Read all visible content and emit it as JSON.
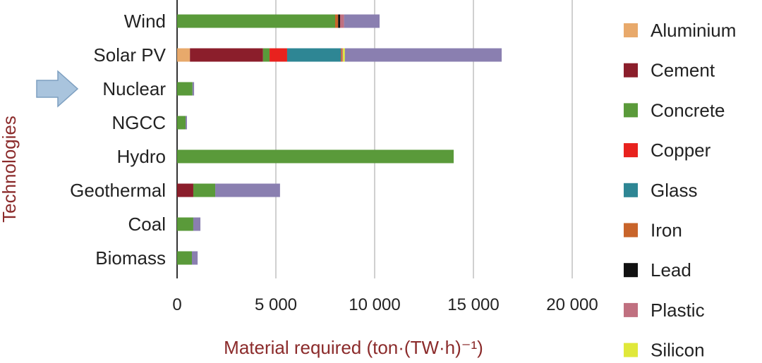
{
  "chart_data": {
    "type": "bar",
    "orientation": "horizontal",
    "stacked": true,
    "title": "",
    "xlabel": "Material required (ton·(TW·h)⁻¹)",
    "ylabel": "Technologies",
    "xlim": [
      0,
      20000
    ],
    "xticks": [
      0,
      5000,
      10000,
      15000,
      20000
    ],
    "xtick_labels": [
      "0",
      "5 000",
      "10 000",
      "15 000",
      "20 000"
    ],
    "grid": "vertical",
    "legend_position": "right",
    "highlighted_category": "Nuclear",
    "highlight_color": "#8b2b2b",
    "arrow_color": "#a9c4dd",
    "categories": [
      "Wind",
      "Solar PV",
      "Nuclear",
      "NGCC",
      "Hydro",
      "Geothermal",
      "Coal",
      "Biomass"
    ],
    "series": [
      {
        "name": "Aluminium",
        "color": "#e8a96b",
        "values": [
          0,
          650,
          0,
          0,
          0,
          0,
          0,
          0
        ]
      },
      {
        "name": "Cement",
        "color": "#8b1e2b",
        "values": [
          0,
          3700,
          0,
          0,
          0,
          820,
          0,
          0
        ]
      },
      {
        "name": "Concrete",
        "color": "#5a9a3a",
        "values": [
          8000,
          330,
          780,
          430,
          14000,
          1110,
          820,
          750
        ]
      },
      {
        "name": "Copper",
        "color": "#e8221e",
        "values": [
          0,
          890,
          0,
          0,
          0,
          0,
          0,
          0
        ]
      },
      {
        "name": "Glass",
        "color": "#2e8694",
        "values": [
          0,
          2720,
          0,
          0,
          0,
          0,
          0,
          0
        ]
      },
      {
        "name": "Iron",
        "color": "#c8642a",
        "values": [
          150,
          50,
          0,
          0,
          0,
          0,
          0,
          0
        ]
      },
      {
        "name": "Lead",
        "color": "#111111",
        "values": [
          100,
          0,
          0,
          0,
          0,
          0,
          0,
          0
        ]
      },
      {
        "name": "Plastic",
        "color": "#c07080",
        "values": [
          200,
          50,
          0,
          0,
          0,
          0,
          0,
          0
        ]
      },
      {
        "name": "Silicon",
        "color": "#e0e83a",
        "values": [
          0,
          100,
          0,
          0,
          0,
          0,
          0,
          0
        ]
      },
      {
        "color": "#8a7fb0",
        "values": [
          1800,
          7940,
          80,
          70,
          0,
          3280,
          360,
          290
        ]
      }
    ]
  }
}
